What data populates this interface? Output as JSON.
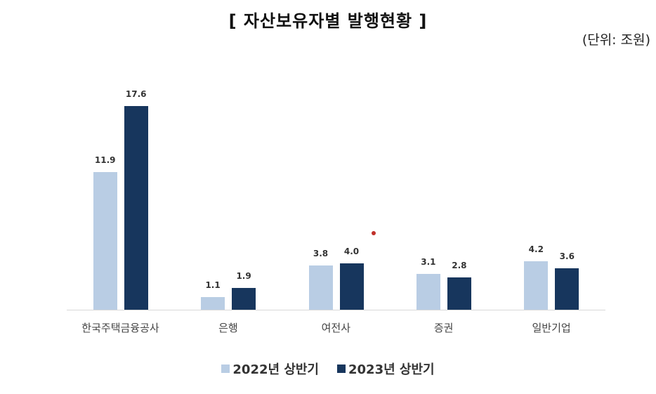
{
  "header": {
    "title": "[  자산보유자별  발행현황  ]",
    "unit": "(단위: 조원)"
  },
  "colors": {
    "series_2022": "#b9cde4",
    "series_2023": "#17365d",
    "marker": "#c0302a"
  },
  "legend": {
    "items": [
      {
        "label": "2022년 상반기",
        "color": "#b9cde4"
      },
      {
        "label": "2023년 상반기",
        "color": "#17365d"
      }
    ]
  },
  "chart_data": {
    "type": "bar",
    "title": "[ 자산보유자별 발행현황 ]",
    "subtitle": "(단위: 조원)",
    "xlabel": "",
    "ylabel": "",
    "categories": [
      "한국주택금융공사",
      "은행",
      "여전사",
      "증권",
      "일반기업"
    ],
    "series": [
      {
        "name": "2022년 상반기",
        "values": [
          11.9,
          1.1,
          3.8,
          3.1,
          4.2
        ]
      },
      {
        "name": "2023년 상반기",
        "values": [
          17.6,
          1.9,
          4.0,
          2.8,
          3.6
        ]
      }
    ],
    "value_labels": [
      [
        "11.9",
        "1.1",
        "3.8",
        "3.1",
        "4.2"
      ],
      [
        "17.6",
        "1.9",
        "4.0",
        "2.8",
        "3.6"
      ]
    ],
    "grid": false,
    "legend_position": "bottom",
    "ylim": [
      0,
      20
    ]
  }
}
